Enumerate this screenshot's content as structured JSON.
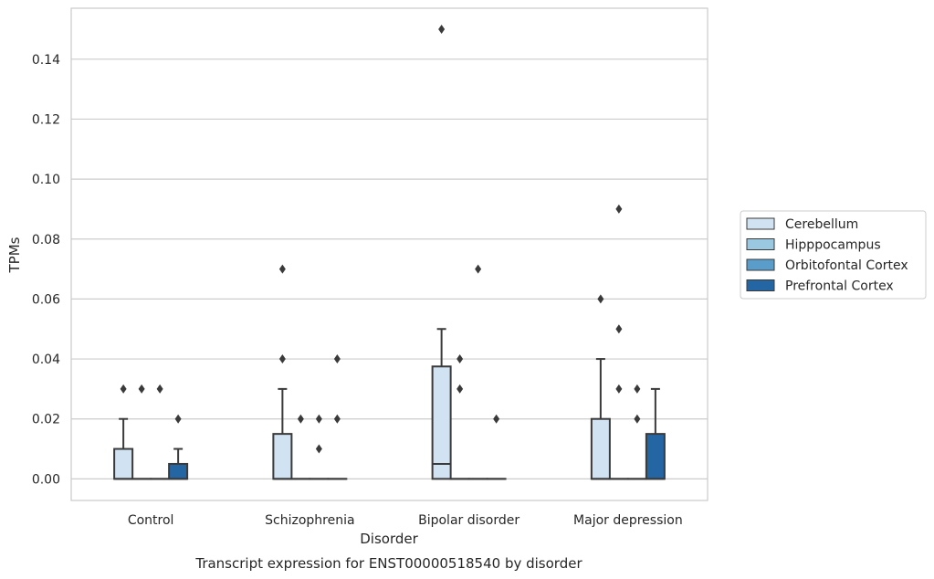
{
  "chart_data": {
    "type": "box",
    "title": "",
    "caption": "Transcript expression for ENST00000518540 by disorder",
    "xlabel": "Disorder",
    "ylabel": "TPMs",
    "ylim": [
      -0.0072,
      0.157
    ],
    "yticks": [
      "0.00",
      "0.02",
      "0.04",
      "0.06",
      "0.08",
      "0.10",
      "0.12",
      "0.14"
    ],
    "grid": "horizontal",
    "legend_position": "right",
    "categories": [
      "Control",
      "Schizophrenia",
      "Bipolar disorder",
      "Major depression"
    ],
    "series": [
      {
        "name": "Cerebellum",
        "color": "#d1e2f2",
        "boxes": [
          {
            "q1": 0,
            "median": 0,
            "q3": 0.01,
            "whisker_low": 0,
            "whisker_high": 0.02,
            "outliers": [
              0.03
            ]
          },
          {
            "q1": 0,
            "median": 0,
            "q3": 0.015,
            "whisker_low": 0,
            "whisker_high": 0.03,
            "outliers": [
              0.04,
              0.07
            ]
          },
          {
            "q1": 0,
            "median": 0.005,
            "q3": 0.0375,
            "whisker_low": 0,
            "whisker_high": 0.05,
            "outliers": [
              0.15
            ]
          },
          {
            "q1": 0,
            "median": 0,
            "q3": 0.02,
            "whisker_low": 0,
            "whisker_high": 0.04,
            "outliers": [
              0.06
            ]
          }
        ]
      },
      {
        "name": "Hipppocampus",
        "color": "#9ac8e0",
        "boxes": [
          {
            "q1": 0,
            "median": 0,
            "q3": 0,
            "whisker_low": 0,
            "whisker_high": 0,
            "outliers": [
              0.03
            ]
          },
          {
            "q1": 0,
            "median": 0,
            "q3": 0,
            "whisker_low": 0,
            "whisker_high": 0,
            "outliers": [
              0.02
            ]
          },
          {
            "q1": 0,
            "median": 0,
            "q3": 0,
            "whisker_low": 0,
            "whisker_high": 0,
            "outliers": [
              0.03,
              0.04
            ]
          },
          {
            "q1": 0,
            "median": 0,
            "q3": 0,
            "whisker_low": 0,
            "whisker_high": 0,
            "outliers": [
              0.03,
              0.05,
              0.09
            ]
          }
        ]
      },
      {
        "name": "Orbitofontal Cortex",
        "color": "#5a9dcb",
        "boxes": [
          {
            "q1": 0,
            "median": 0,
            "q3": 0,
            "whisker_low": 0,
            "whisker_high": 0,
            "outliers": [
              0.03
            ]
          },
          {
            "q1": 0,
            "median": 0,
            "q3": 0,
            "whisker_low": 0,
            "whisker_high": 0,
            "outliers": [
              0.01,
              0.02
            ]
          },
          {
            "q1": 0,
            "median": 0,
            "q3": 0,
            "whisker_low": 0,
            "whisker_high": 0,
            "outliers": [
              0.07
            ]
          },
          {
            "q1": 0,
            "median": 0,
            "q3": 0,
            "whisker_low": 0,
            "whisker_high": 0,
            "outliers": [
              0.02,
              0.03
            ]
          }
        ]
      },
      {
        "name": "Prefrontal Cortex",
        "color": "#2466a4",
        "boxes": [
          {
            "q1": 0,
            "median": 0,
            "q3": 0.005,
            "whisker_low": 0,
            "whisker_high": 0.01,
            "outliers": [
              0.02
            ]
          },
          {
            "q1": 0,
            "median": 0,
            "q3": 0,
            "whisker_low": 0,
            "whisker_high": 0,
            "outliers": [
              0.02,
              0.04
            ]
          },
          {
            "q1": 0,
            "median": 0,
            "q3": 0,
            "whisker_low": 0,
            "whisker_high": 0,
            "outliers": [
              0.02
            ]
          },
          {
            "q1": 0,
            "median": 0,
            "q3": 0.015,
            "whisker_low": 0,
            "whisker_high": 0.03,
            "outliers": []
          }
        ]
      }
    ]
  }
}
